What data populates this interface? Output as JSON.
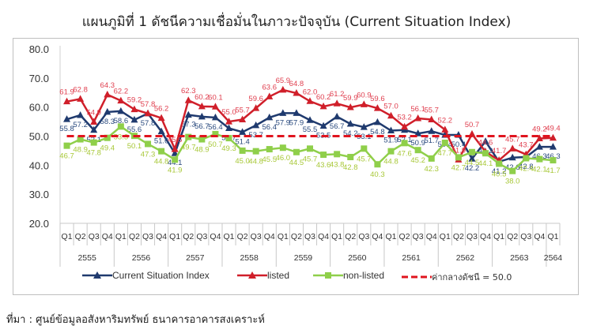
{
  "title": "แผนภูมิที่ 1 ดัชนีความเชื่อมั่นในภาวะปัจจุบัน (Current Situation Index)",
  "source": "ที่มา : ศูนย์ข้อมูลอสังหาริมทรัพย์ ธนาคารอาคารสงเคราะห์",
  "legend": {
    "csi": "Current Situation Index",
    "listed": "listed",
    "nonlisted": "non-listed",
    "mid": "ค่ากลางดัชนี = 50.0"
  },
  "chart_data": {
    "type": "line",
    "title": "แผนภูมิที่ 1 ดัชนีความเชื่อมั่นในภาวะปัจจุบัน (Current Situation Index)",
    "xlabel": "",
    "ylabel": "",
    "ylim": [
      20,
      80
    ],
    "yticks": [
      "20.0",
      "30.0",
      "40.0",
      "50.0",
      "60.0",
      "70.0",
      "80.0"
    ],
    "grid": false,
    "legend_position": "bottom",
    "years": [
      "2555",
      "2556",
      "2557",
      "2558",
      "2559",
      "2560",
      "2561",
      "2562",
      "2563",
      "2564"
    ],
    "categories": [
      "Q1",
      "Q2",
      "Q3",
      "Q4",
      "Q1",
      "Q2",
      "Q3",
      "Q4",
      "Q1",
      "Q2",
      "Q3",
      "Q4",
      "Q1",
      "Q2",
      "Q3",
      "Q4",
      "Q1",
      "Q2",
      "Q3",
      "Q4",
      "Q1",
      "Q2",
      "Q3",
      "Q4",
      "Q1",
      "Q2",
      "Q3",
      "Q4",
      "Q1",
      "Q2",
      "Q3",
      "Q4",
      "Q1",
      "Q2",
      "Q3",
      "Q4",
      "Q1"
    ],
    "series": [
      {
        "name": "Current Situation Index",
        "color": "#1f3a6e",
        "marker": "triangle",
        "values": [
          55.8,
          57.2,
          52.1,
          58.3,
          58.6,
          55.6,
          57.8,
          51.6,
          44.1,
          57.3,
          56.7,
          56.4,
          52.7,
          51.4,
          53.7,
          56.4,
          57.9,
          57.9,
          55.5,
          53.5,
          56.7,
          54.2,
          53.1,
          54.8,
          51.9,
          52.1,
          50.9,
          51.7,
          50.4,
          50.4,
          42.2,
          48.2,
          41.2,
          42.6,
          42.8,
          46.3,
          46.3
        ]
      },
      {
        "name": "listed",
        "color": "#d01f2a",
        "marker": "triangle",
        "values": [
          61.9,
          62.8,
          54.9,
          64.3,
          62.2,
          59.2,
          57.8,
          56.2,
          45.5,
          62.3,
          60.2,
          60.1,
          55.0,
          55.7,
          59.6,
          63.6,
          65.9,
          64.8,
          62.0,
          60.2,
          61.2,
          59.9,
          60.9,
          59.6,
          57.0,
          53.2,
          56.1,
          55.7,
          52.2,
          41.9,
          50.7,
          44.6,
          41.7,
          45.7,
          43.7,
          49.2,
          49.4
        ]
      },
      {
        "name": "non-listed",
        "color": "#8fcf4a",
        "marker": "square",
        "values": [
          46.7,
          48.9,
          47.8,
          49.4,
          53.3,
          50.1,
          47.3,
          44.8,
          41.9,
          49.7,
          48.9,
          50.7,
          49.3,
          45.0,
          44.8,
          45.5,
          46.0,
          44.5,
          45.7,
          43.6,
          43.8,
          42.8,
          45.7,
          40.3,
          44.8,
          47.6,
          45.2,
          42.3,
          47.7,
          42.7,
          44.5,
          44.1,
          40.5,
          38.0,
          42.4,
          42.1,
          41.7
        ]
      },
      {
        "name": "ค่ากลางดัชนี = 50.0",
        "color": "#e0141e",
        "style": "dashed",
        "values": [
          50,
          50,
          50,
          50,
          50,
          50,
          50,
          50,
          50,
          50,
          50,
          50,
          50,
          50,
          50,
          50,
          50,
          50,
          50,
          50,
          50,
          50,
          50,
          50,
          50,
          50,
          50,
          50,
          50,
          50,
          50,
          50,
          50,
          50,
          50,
          50,
          50
        ]
      }
    ]
  }
}
